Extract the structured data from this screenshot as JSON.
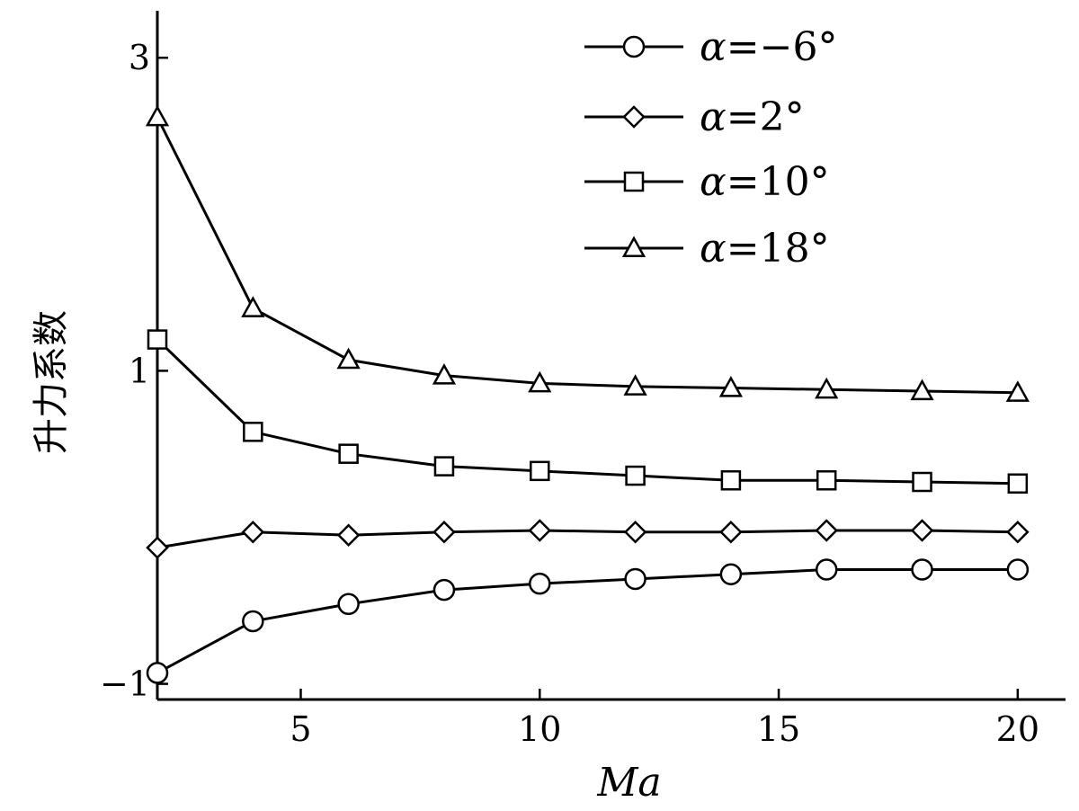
{
  "chart_data": {
    "type": "line",
    "xlabel": "Ma",
    "ylabel": "升力系数",
    "xlim": [
      2,
      21
    ],
    "ylim": [
      -1.1,
      3.3
    ],
    "xticks": [
      5,
      10,
      15,
      20
    ],
    "xtick_labels": [
      "5",
      "10",
      "15",
      "20"
    ],
    "yticks": [
      -1,
      1,
      3
    ],
    "ytick_labels": [
      "−1",
      "1",
      "3"
    ],
    "grid": false,
    "legend_position": "top-right",
    "x": [
      2,
      4,
      6,
      8,
      10,
      12,
      14,
      16,
      18,
      20
    ],
    "series": [
      {
        "name": "α=−6°",
        "greek": "α",
        "rest": "=−6°",
        "marker": "circle",
        "values": [
          -0.93,
          -0.6,
          -0.49,
          -0.4,
          -0.36,
          -0.33,
          -0.3,
          -0.27,
          -0.27,
          -0.27
        ]
      },
      {
        "name": "α=2°",
        "greek": "α",
        "rest": "=2°",
        "marker": "diamond",
        "values": [
          -0.13,
          -0.03,
          -0.05,
          -0.03,
          -0.02,
          -0.03,
          -0.03,
          -0.02,
          -0.02,
          -0.03
        ]
      },
      {
        "name": "α=10°",
        "greek": "α",
        "rest": "=10°",
        "marker": "square",
        "values": [
          1.2,
          0.61,
          0.47,
          0.39,
          0.36,
          0.33,
          0.3,
          0.3,
          0.29,
          0.28
        ]
      },
      {
        "name": "α=18°",
        "greek": "α",
        "rest": "=18°",
        "marker": "triangle",
        "values": [
          2.62,
          1.4,
          1.07,
          0.97,
          0.92,
          0.9,
          0.89,
          0.88,
          0.87,
          0.86
        ]
      }
    ]
  }
}
